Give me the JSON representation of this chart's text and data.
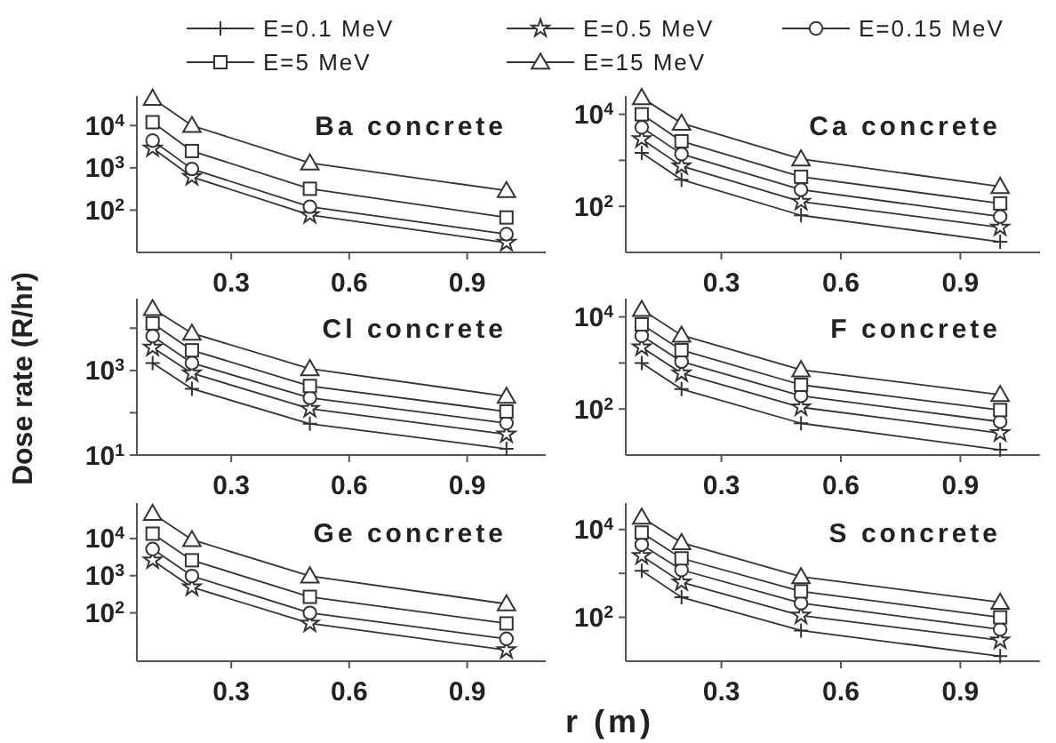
{
  "chart_data": [
    {
      "type": "line",
      "title": "Ba concrete",
      "legend": "top",
      "log": "y",
      "xlim": [
        0.06,
        1.1
      ],
      "xticks": [
        0.3,
        0.6,
        0.9
      ],
      "ylim": [
        10,
        50000
      ],
      "yticks": [
        {
          "value": 100,
          "label": "10$^{2}$"
        },
        {
          "value": 1000,
          "label": "10$^{3}$"
        },
        {
          "value": 10000,
          "label": "10$^{4}$"
        }
      ],
      "x": [
        0.1,
        0.2,
        0.5,
        1.0
      ],
      "series": [
        {
          "name": "E=0.1 MeV",
          "color": "#333333",
          "marker": "cross",
          "values": [
            null,
            null,
            null,
            null
          ]
        },
        {
          "name": "E=0.5 MeV",
          "color": "#333333",
          "marker": "star",
          "values": [
            2900,
            610,
            77,
            17
          ]
        },
        {
          "name": "E=0.15 MeV",
          "color": "#333333",
          "marker": "circle",
          "values": [
            4400,
            940,
            120,
            27
          ]
        },
        {
          "name": "E=5 MeV",
          "color": "#333333",
          "marker": "square",
          "values": [
            12000,
            2500,
            320,
            67
          ]
        },
        {
          "name": "E=15 MeV",
          "color": "#333333",
          "marker": "triangle",
          "values": [
            44000,
            10000,
            1300,
            290
          ]
        }
      ]
    },
    {
      "type": "line",
      "title": "Ca concrete",
      "log": "y",
      "xlim": [
        0.06,
        1.1
      ],
      "xticks": [
        0.3,
        0.6,
        0.9
      ],
      "ylim": [
        10,
        25000
      ],
      "yticks": [
        {
          "value": 100,
          "label": "10$^{2}$"
        },
        {
          "value": 1000,
          "label": null
        },
        {
          "value": 10000,
          "label": "10$^{4}$"
        }
      ],
      "x": [
        0.1,
        0.2,
        0.5,
        1.0
      ],
      "series": [
        {
          "color": "#333333",
          "marker": "cross",
          "values": [
            1450,
            380,
            64,
            17
          ]
        },
        {
          "color": "#333333",
          "marker": "star",
          "values": [
            2900,
            750,
            127,
            35
          ]
        },
        {
          "color": "#333333",
          "marker": "circle",
          "values": [
            5200,
            1370,
            230,
            60
          ]
        },
        {
          "color": "#333333",
          "marker": "square",
          "values": [
            10000,
            2600,
            440,
            116
          ]
        },
        {
          "color": "#333333",
          "marker": "triangle",
          "values": [
            23000,
            6400,
            1070,
            270
          ]
        }
      ]
    },
    {
      "type": "line",
      "title": "Cl concrete",
      "ylabel": "Dose rate (R/hr)",
      "log": "y",
      "xlim": [
        0.06,
        1.1
      ],
      "xticks": [
        0.3,
        0.6,
        0.9
      ],
      "ylim": [
        10,
        50000
      ],
      "yticks": [
        {
          "value": 10,
          "label": "10$^{1}$"
        },
        {
          "value": 100,
          "label": null
        },
        {
          "value": 1000,
          "label": "10$^{3}$"
        },
        {
          "value": 10000,
          "label": null
        }
      ],
      "x": [
        0.1,
        0.2,
        0.5,
        1.0
      ],
      "series": [
        {
          "color": "#333333",
          "marker": "cross",
          "values": [
            1500,
            370,
            55,
            14
          ]
        },
        {
          "color": "#333333",
          "marker": "star",
          "values": [
            3500,
            860,
            124,
            31
          ]
        },
        {
          "color": "#333333",
          "marker": "circle",
          "values": [
            6500,
            1500,
            225,
            57
          ]
        },
        {
          "color": "#333333",
          "marker": "square",
          "values": [
            13000,
            3000,
            430,
            107
          ]
        },
        {
          "color": "#333333",
          "marker": "triangle",
          "values": [
            29000,
            7600,
            1100,
            245
          ]
        }
      ]
    },
    {
      "type": "line",
      "title": "F concrete",
      "log": "y",
      "xlim": [
        0.06,
        1.1
      ],
      "xticks": [
        0.3,
        0.6,
        0.9
      ],
      "ylim": [
        10,
        25000
      ],
      "yticks": [
        {
          "value": 100,
          "label": "10$^{2}$"
        },
        {
          "value": 1000,
          "label": null
        },
        {
          "value": 10000,
          "label": "10$^{4}$"
        }
      ],
      "x": [
        0.1,
        0.2,
        0.5,
        1.0
      ],
      "series": [
        {
          "color": "#333333",
          "marker": "cross",
          "values": [
            1000,
            270,
            49,
            13
          ]
        },
        {
          "color": "#333333",
          "marker": "star",
          "values": [
            2200,
            600,
            109,
            30
          ]
        },
        {
          "color": "#333333",
          "marker": "circle",
          "values": [
            3900,
            1070,
            193,
            53
          ]
        },
        {
          "color": "#333333",
          "marker": "square",
          "values": [
            6900,
            1900,
            335,
            95
          ]
        },
        {
          "color": "#333333",
          "marker": "triangle",
          "values": [
            14500,
            4000,
            710,
            205
          ]
        }
      ]
    },
    {
      "type": "line",
      "title": "Ge concrete",
      "xlabel": "r (m)",
      "log": "y",
      "xlim": [
        0.06,
        1.1
      ],
      "xticks": [
        0.3,
        0.6,
        0.9
      ],
      "ylim": [
        5,
        90000
      ],
      "yticks": [
        {
          "value": 100,
          "label": "10$^{2}$"
        },
        {
          "value": 1000,
          "label": "10$^{3}$"
        },
        {
          "value": 10000,
          "label": "10$^{4}$"
        }
      ],
      "x": [
        0.1,
        0.2,
        0.5,
        1.0
      ],
      "series": [
        {
          "color": "#333333",
          "marker": "cross",
          "values": [
            null,
            null,
            null,
            null
          ]
        },
        {
          "color": "#333333",
          "marker": "star",
          "values": [
            2600,
            490,
            52,
            10
          ]
        },
        {
          "color": "#333333",
          "marker": "circle",
          "values": [
            5200,
            980,
            100,
            20
          ]
        },
        {
          "color": "#333333",
          "marker": "square",
          "values": [
            13500,
            2600,
            270,
            52
          ]
        },
        {
          "color": "#333333",
          "marker": "triangle",
          "values": [
            47000,
            9300,
            980,
            174
          ]
        }
      ]
    },
    {
      "type": "line",
      "title": "S concrete",
      "log": "y",
      "xlim": [
        0.06,
        1.1
      ],
      "xticks": [
        0.3,
        0.6,
        0.9
      ],
      "ylim": [
        10,
        40000
      ],
      "yticks": [
        {
          "value": 100,
          "label": "10$^{2}$"
        },
        {
          "value": 1000,
          "label": null
        },
        {
          "value": 10000,
          "label": "10$^{4}$"
        }
      ],
      "x": [
        0.1,
        0.2,
        0.5,
        1.0
      ],
      "series": [
        {
          "color": "#333333",
          "marker": "cross",
          "values": [
            1150,
            285,
            50,
            13
          ]
        },
        {
          "color": "#333333",
          "marker": "star",
          "values": [
            2500,
            630,
            110,
            30
          ]
        },
        {
          "color": "#333333",
          "marker": "circle",
          "values": [
            4500,
            1200,
            210,
            53
          ]
        },
        {
          "color": "#333333",
          "marker": "square",
          "values": [
            8500,
            2200,
            390,
            100
          ]
        },
        {
          "color": "#333333",
          "marker": "triangle",
          "values": [
            19000,
            5000,
            840,
            220
          ]
        }
      ]
    }
  ]
}
